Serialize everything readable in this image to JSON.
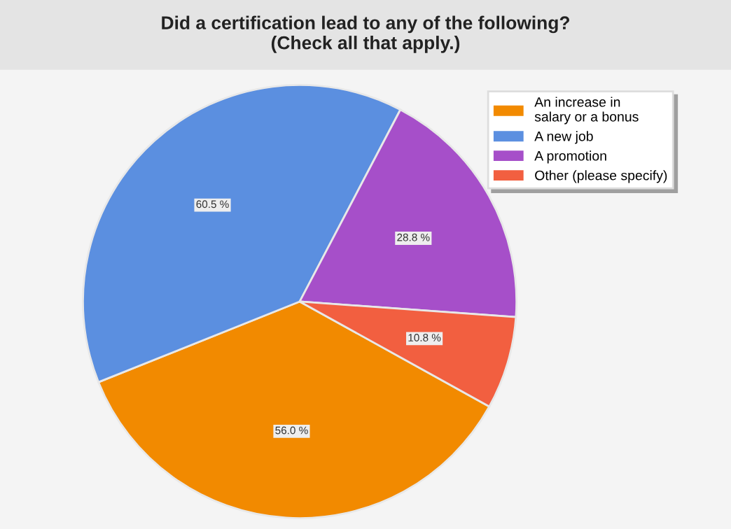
{
  "chart_data": {
    "type": "pie",
    "title": "Did a certification lead to any of the following?\n(Check all that apply.)",
    "categories": [
      "An increase in\nsalary or a bonus",
      "A new job",
      "A promotion",
      "Other (please specify)"
    ],
    "values": [
      56.0,
      60.5,
      28.8,
      10.8
    ],
    "value_labels": [
      "56.0 %",
      "60.5 %",
      "28.8 %",
      "10.8 %"
    ],
    "colors": [
      "#f28a00",
      "#5b8fe0",
      "#a64fc9",
      "#f25f40"
    ],
    "legend": "top right"
  }
}
